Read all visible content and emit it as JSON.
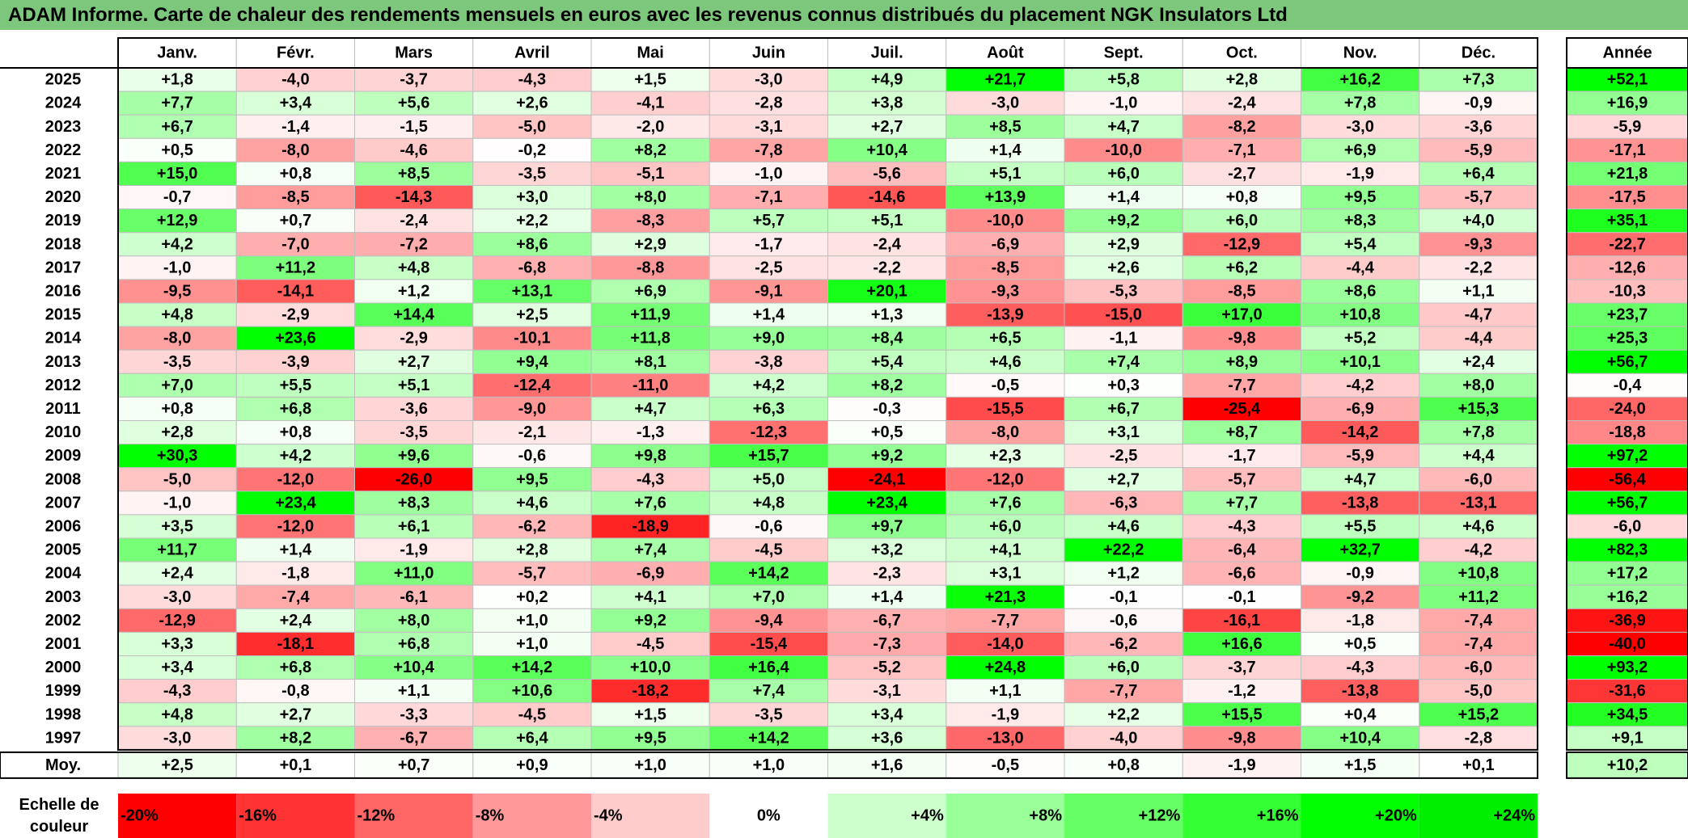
{
  "title": "ADAM Informe. Carte de chaleur des rendements mensuels en euros avec les revenus connus distribués du placement NGK Insulators Ltd",
  "chart_data": {
    "type": "heatmap",
    "months": [
      "Janv.",
      "Févr.",
      "Mars",
      "Avril",
      "Mai",
      "Juin",
      "Juil.",
      "Août",
      "Sept.",
      "Oct.",
      "Nov.",
      "Déc."
    ],
    "year_header": "Année",
    "rows": [
      {
        "year": "2025",
        "values": [
          "+1,8",
          "-4,0",
          "-3,7",
          "-4,3",
          "+1,5",
          "-3,0",
          "+4,9",
          "+21,7",
          "+5,8",
          "+2,8",
          "+16,2",
          "+7,3"
        ],
        "annual": "+52,1"
      },
      {
        "year": "2024",
        "values": [
          "+7,7",
          "+3,4",
          "+5,6",
          "+2,6",
          "-4,1",
          "-2,8",
          "+3,8",
          "-3,0",
          "-1,0",
          "-2,4",
          "+7,8",
          "-0,9"
        ],
        "annual": "+16,9"
      },
      {
        "year": "2023",
        "values": [
          "+6,7",
          "-1,4",
          "-1,5",
          "-5,0",
          "-2,0",
          "-3,1",
          "+2,7",
          "+8,5",
          "+4,7",
          "-8,2",
          "-3,0",
          "-3,6"
        ],
        "annual": "-5,9"
      },
      {
        "year": "2022",
        "values": [
          "+0,5",
          "-8,0",
          "-4,6",
          "-0,2",
          "+8,2",
          "-7,8",
          "+10,4",
          "+1,4",
          "-10,0",
          "-7,1",
          "+6,9",
          "-5,9"
        ],
        "annual": "-17,1"
      },
      {
        "year": "2021",
        "values": [
          "+15,0",
          "+0,8",
          "+8,5",
          "-3,5",
          "-5,1",
          "-1,0",
          "-5,6",
          "+5,1",
          "+6,0",
          "-2,7",
          "-1,9",
          "+6,4"
        ],
        "annual": "+21,8"
      },
      {
        "year": "2020",
        "values": [
          "-0,7",
          "-8,5",
          "-14,3",
          "+3,0",
          "+8,0",
          "-7,1",
          "-14,6",
          "+13,9",
          "+1,4",
          "+0,8",
          "+9,5",
          "-5,7"
        ],
        "annual": "-17,5"
      },
      {
        "year": "2019",
        "values": [
          "+12,9",
          "+0,7",
          "-2,4",
          "+2,2",
          "-8,3",
          "+5,7",
          "+5,1",
          "-10,0",
          "+9,2",
          "+6,0",
          "+8,3",
          "+4,0"
        ],
        "annual": "+35,1"
      },
      {
        "year": "2018",
        "values": [
          "+4,2",
          "-7,0",
          "-7,2",
          "+8,6",
          "+2,9",
          "-1,7",
          "-2,4",
          "-6,9",
          "+2,9",
          "-12,9",
          "+5,4",
          "-9,3"
        ],
        "annual": "-22,7"
      },
      {
        "year": "2017",
        "values": [
          "-1,0",
          "+11,2",
          "+4,8",
          "-6,8",
          "-8,8",
          "-2,5",
          "-2,2",
          "-8,5",
          "+2,6",
          "+6,2",
          "-4,4",
          "-2,2"
        ],
        "annual": "-12,6"
      },
      {
        "year": "2016",
        "values": [
          "-9,5",
          "-14,1",
          "+1,2",
          "+13,1",
          "+6,9",
          "-9,1",
          "+20,1",
          "-9,3",
          "-5,3",
          "-8,5",
          "+8,6",
          "+1,1"
        ],
        "annual": "-10,3"
      },
      {
        "year": "2015",
        "values": [
          "+4,8",
          "-2,9",
          "+14,4",
          "+2,5",
          "+11,9",
          "+1,4",
          "+1,3",
          "-13,9",
          "-15,0",
          "+17,0",
          "+10,8",
          "-4,7"
        ],
        "annual": "+23,7"
      },
      {
        "year": "2014",
        "values": [
          "-8,0",
          "+23,6",
          "-2,9",
          "-10,1",
          "+11,8",
          "+9,0",
          "+8,4",
          "+6,5",
          "-1,1",
          "-9,8",
          "+5,2",
          "-4,4"
        ],
        "annual": "+25,3"
      },
      {
        "year": "2013",
        "values": [
          "-3,5",
          "-3,9",
          "+2,7",
          "+9,4",
          "+8,1",
          "-3,8",
          "+5,4",
          "+4,6",
          "+7,4",
          "+8,9",
          "+10,1",
          "+2,4"
        ],
        "annual": "+56,7"
      },
      {
        "year": "2012",
        "values": [
          "+7,0",
          "+5,5",
          "+5,1",
          "-12,4",
          "-11,0",
          "+4,2",
          "+8,2",
          "-0,5",
          "+0,3",
          "-7,7",
          "-4,2",
          "+8,0"
        ],
        "annual": "-0,4"
      },
      {
        "year": "2011",
        "values": [
          "+0,8",
          "+6,8",
          "-3,6",
          "-9,0",
          "+4,7",
          "+6,3",
          "-0,3",
          "-15,5",
          "+6,7",
          "-25,4",
          "-6,9",
          "+15,3"
        ],
        "annual": "-24,0"
      },
      {
        "year": "2010",
        "values": [
          "+2,8",
          "+0,8",
          "-3,5",
          "-2,1",
          "-1,3",
          "-12,3",
          "+0,5",
          "-8,0",
          "+3,1",
          "+8,7",
          "-14,2",
          "+7,8"
        ],
        "annual": "-18,8"
      },
      {
        "year": "2009",
        "values": [
          "+30,3",
          "+4,2",
          "+9,6",
          "-0,6",
          "+9,8",
          "+15,7",
          "+9,2",
          "+2,3",
          "-2,5",
          "-1,7",
          "-5,9",
          "+4,4"
        ],
        "annual": "+97,2"
      },
      {
        "year": "2008",
        "values": [
          "-5,0",
          "-12,0",
          "-26,0",
          "+9,5",
          "-4,3",
          "+5,0",
          "-24,1",
          "-12,0",
          "+2,7",
          "-5,7",
          "+4,7",
          "-6,0"
        ],
        "annual": "-56,4"
      },
      {
        "year": "2007",
        "values": [
          "-1,0",
          "+23,4",
          "+8,3",
          "+4,6",
          "+7,6",
          "+4,8",
          "+23,4",
          "+7,6",
          "-6,3",
          "+7,7",
          "-13,8",
          "-13,1"
        ],
        "annual": "+56,7"
      },
      {
        "year": "2006",
        "values": [
          "+3,5",
          "-12,0",
          "+6,1",
          "-6,2",
          "-18,9",
          "-0,6",
          "+9,7",
          "+6,0",
          "+4,6",
          "-4,3",
          "+5,5",
          "+4,6"
        ],
        "annual": "-6,0"
      },
      {
        "year": "2005",
        "values": [
          "+11,7",
          "+1,4",
          "-1,9",
          "+2,8",
          "+7,4",
          "-4,5",
          "+3,2",
          "+4,1",
          "+22,2",
          "-6,4",
          "+32,7",
          "-4,2"
        ],
        "annual": "+82,3"
      },
      {
        "year": "2004",
        "values": [
          "+2,4",
          "-1,8",
          "+11,0",
          "-5,7",
          "-6,9",
          "+14,2",
          "-2,3",
          "+3,1",
          "+1,2",
          "-6,6",
          "-0,9",
          "+10,8"
        ],
        "annual": "+17,2"
      },
      {
        "year": "2003",
        "values": [
          "-3,0",
          "-7,4",
          "-6,1",
          "+0,2",
          "+4,1",
          "+7,0",
          "+1,4",
          "+21,3",
          "-0,1",
          "-0,1",
          "-9,2",
          "+11,2"
        ],
        "annual": "+16,2"
      },
      {
        "year": "2002",
        "values": [
          "-12,9",
          "+2,4",
          "+8,0",
          "+1,0",
          "+9,2",
          "-9,4",
          "-6,7",
          "-7,7",
          "-0,6",
          "-16,1",
          "-1,8",
          "-7,4"
        ],
        "annual": "-36,9"
      },
      {
        "year": "2001",
        "values": [
          "+3,3",
          "-18,1",
          "+6,8",
          "+1,0",
          "-4,5",
          "-15,4",
          "-7,3",
          "-14,0",
          "-6,2",
          "+16,6",
          "+0,5",
          "-7,4"
        ],
        "annual": "-40,0"
      },
      {
        "year": "2000",
        "values": [
          "+3,4",
          "+6,8",
          "+10,4",
          "+14,2",
          "+10,0",
          "+16,4",
          "-5,2",
          "+24,8",
          "+6,0",
          "-3,7",
          "-4,3",
          "-6,0"
        ],
        "annual": "+93,2"
      },
      {
        "year": "1999",
        "values": [
          "-4,3",
          "-0,8",
          "+1,1",
          "+10,6",
          "-18,2",
          "+7,4",
          "-3,1",
          "+1,1",
          "-7,7",
          "-1,2",
          "-13,8",
          "-5,0"
        ],
        "annual": "-31,6"
      },
      {
        "year": "1998",
        "values": [
          "+4,8",
          "+2,7",
          "-3,3",
          "-4,5",
          "+1,5",
          "-3,5",
          "+3,4",
          "-1,9",
          "+2,2",
          "+15,5",
          "+0,4",
          "+15,2"
        ],
        "annual": "+34,5"
      },
      {
        "year": "1997",
        "values": [
          "-3,0",
          "+8,2",
          "-6,7",
          "+6,4",
          "+9,5",
          "+14,2",
          "+3,6",
          "-13,0",
          "-4,0",
          "-9,8",
          "+10,4",
          "-2,8"
        ],
        "annual": "+9,1"
      }
    ],
    "average": {
      "label": "Moy.",
      "values": [
        "+2,5",
        "+0,1",
        "+0,7",
        "+0,9",
        "+1,0",
        "+1,0",
        "+1,6",
        "-0,5",
        "+0,8",
        "-1,9",
        "+1,5",
        "+0,1"
      ],
      "annual": "+10,2"
    },
    "scale": {
      "label_line1": "Echelle de",
      "label_line2": "couleur",
      "steps": [
        {
          "label": "-20%",
          "color": "#ff0000"
        },
        {
          "label": "-16%",
          "color": "#ff3333"
        },
        {
          "label": "-12%",
          "color": "#ff6666"
        },
        {
          "label": "-8%",
          "color": "#ff9999"
        },
        {
          "label": "-4%",
          "color": "#ffcccc"
        },
        {
          "label": "0%",
          "color": "#ffffff"
        },
        {
          "label": "+4%",
          "color": "#ccffcc"
        },
        {
          "label": "+8%",
          "color": "#99ff99"
        },
        {
          "label": "+12%",
          "color": "#66ff66"
        },
        {
          "label": "+16%",
          "color": "#33ff33"
        },
        {
          "label": "+20%",
          "color": "#00ff00"
        },
        {
          "label": "+24%",
          "color": "#00ee00"
        }
      ]
    },
    "colors": {
      "title_bar": "#7dc77d",
      "negative_max": "#ff0000",
      "neutral": "#ffffff",
      "positive_max": "#00ff00"
    }
  }
}
